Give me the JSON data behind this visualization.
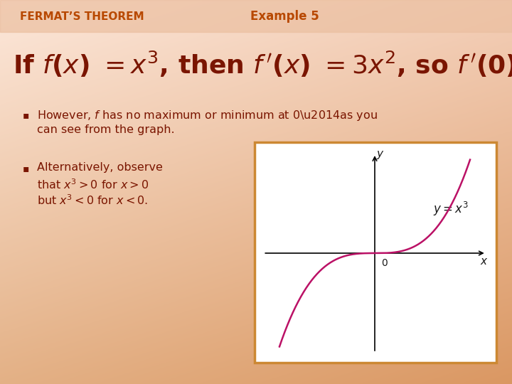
{
  "bg_color_top": "#fae8d8",
  "bg_color_bottom": "#e8a878",
  "bg_color_main": "#f0c8a0",
  "header_title": "FERMAT’S THEOREM",
  "header_example": "Example 5",
  "header_color": "#b84800",
  "header_bg_color": "#ebbfa0",
  "formula_color": "#7a1500",
  "bullet_color": "#7a1500",
  "text_color": "#7a1500",
  "curve_color": "#bb1166",
  "graph_border_color": "#cc8833",
  "graph_bg": "#ffffff",
  "graph_label_color": "#1a1a1a"
}
